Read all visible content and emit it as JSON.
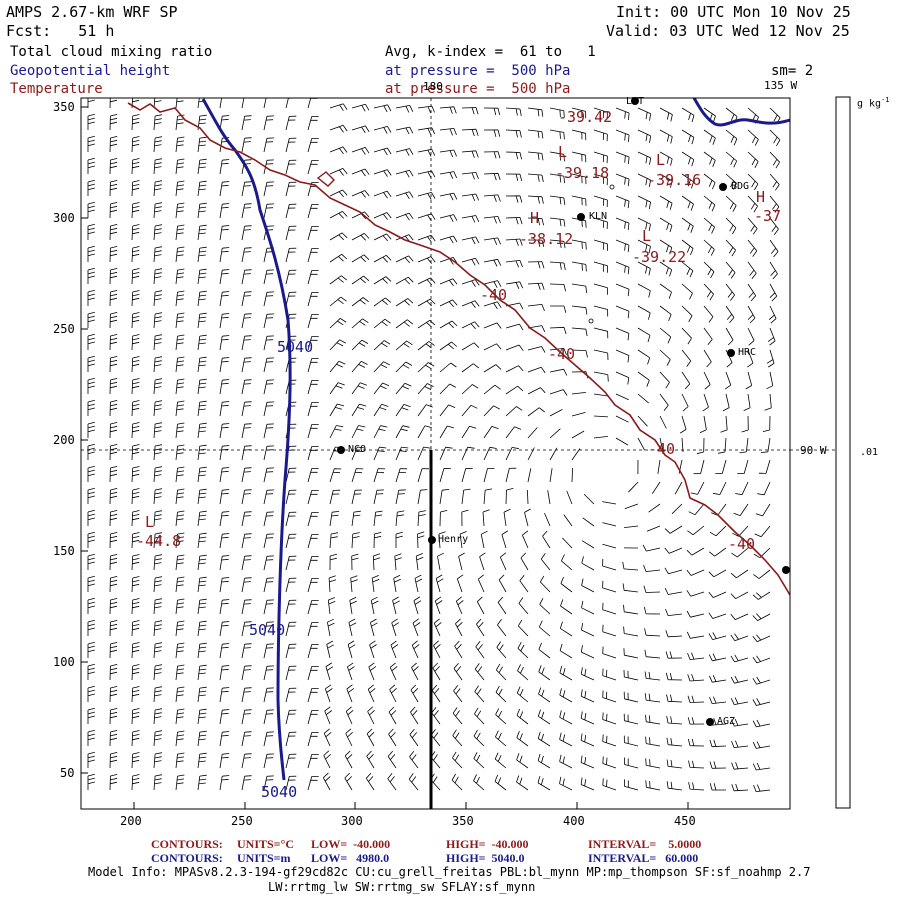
{
  "header": {
    "model_title": "AMPS 2.67-km WRF SP",
    "forecast": "Fcst:   51 h",
    "init": "Init: 00 UTC Mon 10 Nov 25",
    "valid": "Valid: 03 UTC Wed 12 Nov 25",
    "field1": "Total cloud mixing ratio",
    "field2": "Geopotential height",
    "field3": "Temperature",
    "avg": "Avg, k-index =  61 to   1",
    "pressure1": "at pressure =  500 hPa",
    "pressure2": "at pressure =  500 hPa",
    "sm": "sm= 2"
  },
  "colors": {
    "blue": "#1a1a8c",
    "red": "#8b1a1a",
    "black": "#000000"
  },
  "map": {
    "x_ticks": [
      "200",
      "250",
      "300",
      "350",
      "400",
      "450"
    ],
    "y_ticks": [
      "350",
      "300",
      "250",
      "200",
      "150",
      "100",
      "50"
    ],
    "lon_labels": {
      "top_180": "180",
      "top_135w": "135 W",
      "right_90w": "90 W"
    },
    "stations": [
      {
        "name": "KLN",
        "id": "kln"
      },
      {
        "name": "BDG",
        "id": "bdg"
      },
      {
        "name": "HRC",
        "id": "hrc"
      },
      {
        "name": "NCO",
        "id": "nco"
      },
      {
        "name": "Henry",
        "id": "henry"
      },
      {
        "name": "AGZ",
        "id": "agz"
      },
      {
        "name": "LYT",
        "id": "lyt"
      }
    ],
    "temp_labels": [
      "-39.42",
      "-39.18",
      "-39.16",
      "-38.12",
      "-39.22",
      "-37",
      "-40",
      "-40",
      "-40",
      "-40",
      "-44.8"
    ],
    "extrema_marks": [
      "L",
      "L",
      "H",
      "L",
      "H",
      "L"
    ],
    "height_labels": [
      "5040",
      "5040",
      "5040"
    ]
  },
  "colorbar": {
    "unit": "g kg",
    "unit_exp": "-1",
    "tick": ".01"
  },
  "footer": {
    "contours1_prefix": "CONTOURS:",
    "contours1_units": "UNITS=°C",
    "contours1_low": "LOW=  -40.000",
    "contours1_high": "HIGH=  -40.000",
    "contours1_interval": "INTERVAL=    5.0000",
    "contours2_prefix": "CONTOURS:",
    "contours2_units": "UNITS=m",
    "contours2_low": "LOW=   4980.0",
    "contours2_high": "HIGH=  5040.0",
    "contours2_interval": "INTERVAL=   60.000",
    "model_info": "Model Info: MPASv8.2.3-194-gf29cd82c CU:cu_grell_freitas PBL:bl_mynn MP:mp_thompson SF:sf_noahmp 2.7",
    "model_info2": "LW:rrtmg_lw SW:rrtmg_sw SFLAY:sf_mynn"
  }
}
